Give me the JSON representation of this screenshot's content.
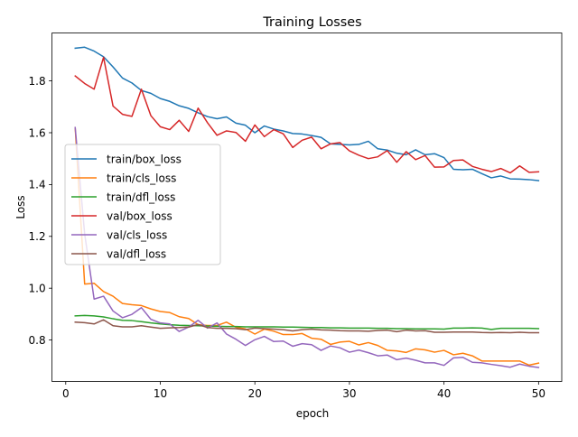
{
  "chart_data": {
    "type": "line",
    "title": "Training Losses",
    "xlabel": "epoch",
    "ylabel": "Loss",
    "xlim": [
      -1.45,
      52.45
    ],
    "ylim": [
      0.64,
      1.985
    ],
    "xticks": [
      0,
      10,
      20,
      30,
      40,
      50
    ],
    "yticks": [
      0.8,
      1.0,
      1.2,
      1.4,
      1.6,
      1.8
    ],
    "ytick_labels": [
      "0.8",
      "1.0",
      "1.2",
      "1.4",
      "1.6",
      "1.8"
    ],
    "grid": false,
    "legend_position": "center-left",
    "x": [
      1,
      2,
      3,
      4,
      5,
      6,
      7,
      8,
      9,
      10,
      11,
      12,
      13,
      14,
      15,
      16,
      17,
      18,
      19,
      20,
      21,
      22,
      23,
      24,
      25,
      26,
      27,
      28,
      29,
      30,
      31,
      32,
      33,
      34,
      35,
      36,
      37,
      38,
      39,
      40,
      41,
      42,
      43,
      44,
      45,
      46,
      47,
      48,
      49,
      50
    ],
    "series": [
      {
        "name": "train/box_loss",
        "color": "#1f77b4",
        "values": [
          1.926,
          1.93,
          1.915,
          1.893,
          1.854,
          1.811,
          1.792,
          1.763,
          1.752,
          1.732,
          1.721,
          1.704,
          1.694,
          1.677,
          1.662,
          1.654,
          1.661,
          1.637,
          1.629,
          1.6,
          1.626,
          1.614,
          1.607,
          1.597,
          1.595,
          1.589,
          1.582,
          1.557,
          1.555,
          1.553,
          1.555,
          1.567,
          1.538,
          1.533,
          1.521,
          1.515,
          1.534,
          1.515,
          1.519,
          1.504,
          1.459,
          1.457,
          1.459,
          1.442,
          1.426,
          1.433,
          1.422,
          1.421,
          1.419,
          1.415
        ]
      },
      {
        "name": "train/cls_loss",
        "color": "#ff7f0e",
        "values": [
          1.62,
          1.016,
          1.019,
          0.987,
          0.969,
          0.941,
          0.936,
          0.933,
          0.92,
          0.91,
          0.906,
          0.89,
          0.883,
          0.859,
          0.856,
          0.856,
          0.869,
          0.849,
          0.843,
          0.823,
          0.842,
          0.834,
          0.821,
          0.821,
          0.825,
          0.807,
          0.803,
          0.783,
          0.792,
          0.795,
          0.781,
          0.79,
          0.779,
          0.76,
          0.758,
          0.752,
          0.766,
          0.762,
          0.753,
          0.76,
          0.743,
          0.749,
          0.739,
          0.719,
          0.719,
          0.719,
          0.719,
          0.719,
          0.703,
          0.711
        ]
      },
      {
        "name": "train/dfl_loss",
        "color": "#2ca02c",
        "values": [
          0.893,
          0.895,
          0.893,
          0.889,
          0.882,
          0.876,
          0.875,
          0.871,
          0.866,
          0.862,
          0.859,
          0.857,
          0.856,
          0.855,
          0.854,
          0.853,
          0.852,
          0.852,
          0.851,
          0.851,
          0.851,
          0.851,
          0.85,
          0.85,
          0.849,
          0.848,
          0.848,
          0.847,
          0.847,
          0.846,
          0.846,
          0.846,
          0.845,
          0.845,
          0.844,
          0.844,
          0.843,
          0.843,
          0.843,
          0.842,
          0.846,
          0.846,
          0.847,
          0.846,
          0.841,
          0.845,
          0.845,
          0.845,
          0.845,
          0.844
        ]
      },
      {
        "name": "val/box_loss",
        "color": "#d62728",
        "values": [
          1.819,
          1.79,
          1.768,
          1.891,
          1.703,
          1.671,
          1.663,
          1.768,
          1.666,
          1.623,
          1.612,
          1.648,
          1.605,
          1.695,
          1.638,
          1.59,
          1.607,
          1.601,
          1.567,
          1.63,
          1.585,
          1.612,
          1.596,
          1.543,
          1.571,
          1.583,
          1.538,
          1.557,
          1.562,
          1.53,
          1.513,
          1.5,
          1.507,
          1.531,
          1.486,
          1.527,
          1.496,
          1.512,
          1.467,
          1.468,
          1.493,
          1.495,
          1.47,
          1.459,
          1.45,
          1.462,
          1.445,
          1.472,
          1.447,
          1.449
        ]
      },
      {
        "name": "val/cls_loss",
        "color": "#9467bd",
        "values": [
          1.62,
          1.21,
          0.958,
          0.969,
          0.912,
          0.886,
          0.899,
          0.925,
          0.88,
          0.866,
          0.862,
          0.833,
          0.85,
          0.876,
          0.846,
          0.866,
          0.823,
          0.803,
          0.779,
          0.801,
          0.814,
          0.794,
          0.796,
          0.776,
          0.786,
          0.782,
          0.76,
          0.777,
          0.77,
          0.753,
          0.761,
          0.751,
          0.739,
          0.742,
          0.724,
          0.73,
          0.722,
          0.712,
          0.712,
          0.702,
          0.731,
          0.733,
          0.714,
          0.712,
          0.706,
          0.701,
          0.695,
          0.707,
          0.699,
          0.694
        ]
      },
      {
        "name": "val/dfl_loss",
        "color": "#8c564b",
        "values": [
          0.869,
          0.867,
          0.862,
          0.878,
          0.855,
          0.851,
          0.851,
          0.855,
          0.85,
          0.845,
          0.847,
          0.848,
          0.85,
          0.86,
          0.848,
          0.845,
          0.845,
          0.844,
          0.84,
          0.846,
          0.844,
          0.842,
          0.84,
          0.835,
          0.84,
          0.842,
          0.839,
          0.838,
          0.836,
          0.835,
          0.835,
          0.834,
          0.837,
          0.838,
          0.832,
          0.838,
          0.835,
          0.836,
          0.83,
          0.83,
          0.831,
          0.831,
          0.831,
          0.829,
          0.828,
          0.829,
          0.828,
          0.83,
          0.828,
          0.828
        ]
      }
    ]
  }
}
